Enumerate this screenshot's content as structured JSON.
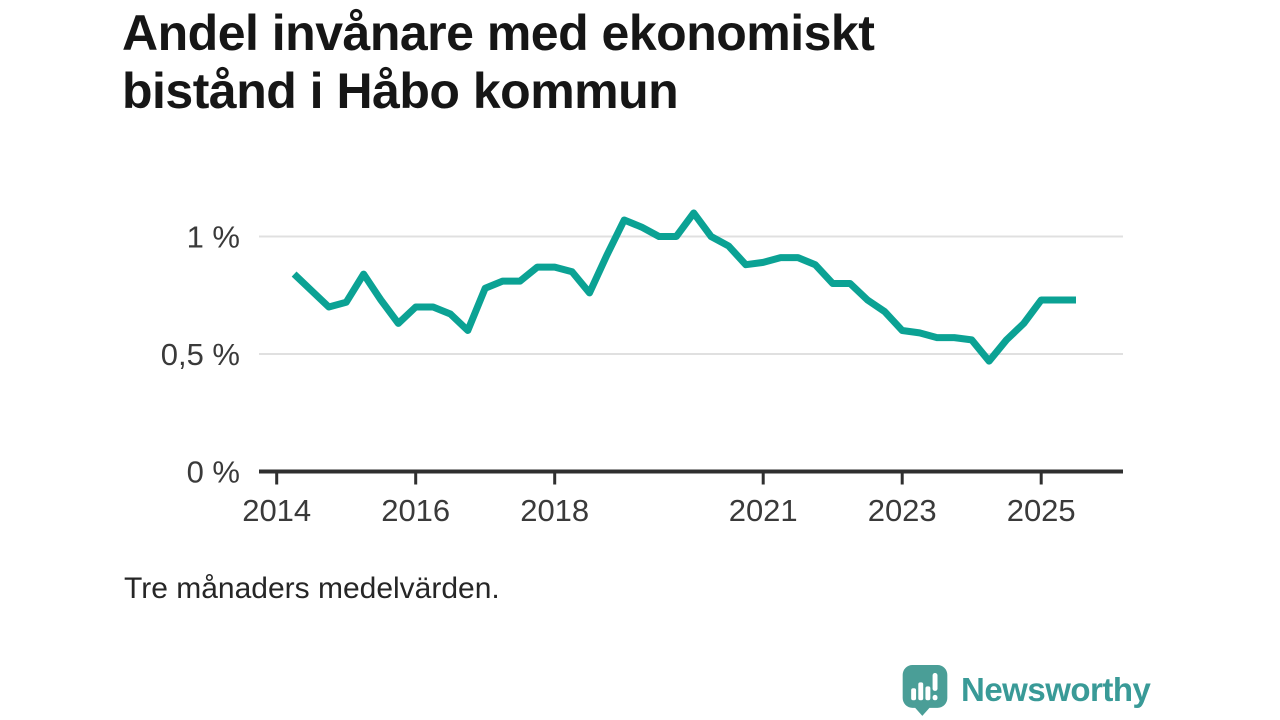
{
  "header": {
    "title": "Andel invånare med ekonomiskt\nbistånd i Håbo kommun"
  },
  "footer": {
    "note": "Tre månaders medelvärden.",
    "brand": "Newsworthy"
  },
  "logo": {
    "icon": "speech-bubble-bar-chart-exclamation",
    "bubble_color": "#4a9e97",
    "text_color": "#399a97"
  },
  "chart_data": {
    "type": "line",
    "title": "Andel invånare med ekonomiskt bistånd i Håbo kommun",
    "note": "Tre månaders medelvärden.",
    "unit": "%",
    "xlabel": "",
    "ylabel": "",
    "xlim": [
      2013.75,
      2026.2
    ],
    "ylim": [
      0,
      1.18
    ],
    "grid": "horizontal",
    "legend": "none",
    "line_color": "#0ba294",
    "grid_color": "#e0e0e0",
    "axis_color": "#2f2f2f",
    "tick_label_color": "#3a3a3a",
    "yticks": [
      {
        "value": 0,
        "label": "0 %"
      },
      {
        "value": 0.5,
        "label": "0,5 %"
      },
      {
        "value": 1,
        "label": "1 %"
      }
    ],
    "xticks": [
      {
        "value": 2014,
        "label": "2014"
      },
      {
        "value": 2016,
        "label": "2016"
      },
      {
        "value": 2018,
        "label": "2018"
      },
      {
        "value": 2021,
        "label": "2021"
      },
      {
        "value": 2023,
        "label": "2023"
      },
      {
        "value": 2025,
        "label": "2025"
      }
    ],
    "series": [
      {
        "name": "Andel invånare med ekonomiskt bistånd",
        "x": [
          2014.25,
          2014.5,
          2014.75,
          2015.0,
          2015.25,
          2015.5,
          2015.75,
          2016.0,
          2016.25,
          2016.5,
          2016.75,
          2017.0,
          2017.25,
          2017.5,
          2017.75,
          2018.0,
          2018.25,
          2018.5,
          2018.75,
          2019.0,
          2019.25,
          2019.5,
          2019.75,
          2020.0,
          2020.25,
          2020.5,
          2020.75,
          2021.0,
          2021.25,
          2021.5,
          2021.75,
          2022.0,
          2022.25,
          2022.5,
          2022.75,
          2023.0,
          2023.25,
          2023.5,
          2023.75,
          2024.0,
          2024.25,
          2024.5,
          2024.75,
          2025.0,
          2025.25,
          2025.5
        ],
        "values": [
          0.84,
          0.77,
          0.7,
          0.72,
          0.84,
          0.73,
          0.63,
          0.7,
          0.7,
          0.67,
          0.6,
          0.78,
          0.81,
          0.81,
          0.87,
          0.87,
          0.85,
          0.76,
          0.92,
          1.07,
          1.04,
          1.0,
          1.0,
          1.1,
          1.0,
          0.96,
          0.88,
          0.89,
          0.91,
          0.91,
          0.88,
          0.8,
          0.8,
          0.73,
          0.68,
          0.6,
          0.59,
          0.57,
          0.57,
          0.56,
          0.47,
          0.56,
          0.63,
          0.73,
          0.73,
          0.73
        ]
      }
    ]
  }
}
